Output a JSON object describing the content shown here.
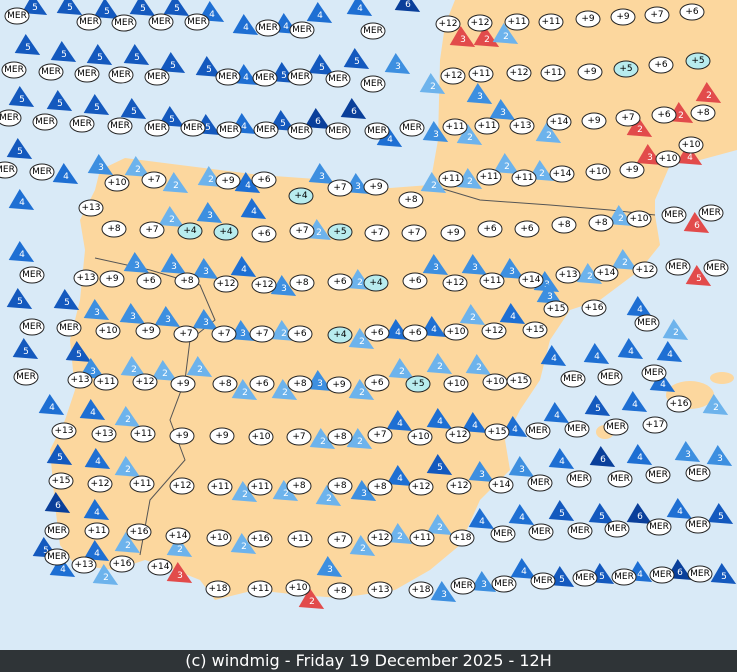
{
  "footer": "(c) windmig - Friday 19 December 2025 - 12H",
  "sea_color": "#d9eaf7",
  "land_color": "#fcd79e",
  "cold_fill": "#b8ecee",
  "gust_color": "#e24b4b",
  "wind_colors": {
    "2": "#6db3ec",
    "3": "#3d8fe0",
    "4": "#1e6fd3",
    "5": "#1459be",
    "6": "#0a3f9a"
  },
  "markers": [
    [
      "MER",
      "MER",
      "MER",
      "MER",
      "MER",
      "MER",
      "MER",
      "MER",
      "+12",
      "+12",
      "+11",
      "+11",
      "+9",
      "+9",
      "+7",
      "+6"
    ],
    [
      "MER",
      "MER",
      "MER",
      "MER",
      "MER",
      "MER",
      "MER",
      "MER",
      "MER",
      "MER",
      "+12",
      "+11",
      "+12",
      "+11",
      "+9",
      "+5",
      "+6",
      "+5"
    ],
    [
      "MER",
      "MER",
      "MER",
      "MER",
      "MER",
      "MER",
      "MER",
      "MER",
      "MER",
      "MER",
      "MER",
      "MER",
      "+11",
      "+11",
      "+13",
      "+14",
      "+9",
      "+7",
      "+6",
      "+8"
    ],
    [
      "MER",
      "MER",
      "+10",
      "+7",
      "+9",
      "+6",
      "+7",
      "+9",
      "+11",
      "+11",
      "+11",
      "+14",
      "+10",
      "+9",
      "+10",
      "+10",
      "+4",
      "+8",
      "+13"
    ],
    [
      "+8",
      "+7",
      "+4",
      "+4",
      "+6",
      "+7",
      "+5",
      "+7",
      "+7",
      "+9",
      "+6",
      "+6",
      "+8",
      "+8",
      "+10",
      "MER",
      "MER"
    ],
    [
      "MER",
      "+13",
      "+9",
      "+6",
      "+8",
      "+12",
      "+12",
      "+8",
      "+6",
      "+4",
      "+6",
      "+12",
      "+11",
      "+14",
      "+13",
      "+14",
      "+12",
      "MER",
      "MER",
      "+15",
      "+16"
    ],
    [
      "MER",
      "MER",
      "+10",
      "+9",
      "+7",
      "+7",
      "+7",
      "+6",
      "+4",
      "+6",
      "+6",
      "+10",
      "+12",
      "+15",
      "MER"
    ],
    [
      "MER",
      "+13",
      "+11",
      "+12",
      "+9",
      "+8",
      "+6",
      "+8",
      "+9",
      "+6",
      "+5",
      "+10",
      "+10",
      "+15",
      "MER",
      "MER",
      "MER",
      "+16"
    ],
    [
      "+13",
      "+13",
      "+11",
      "+9",
      "+9",
      "+10",
      "+7",
      "+8",
      "+7",
      "+10",
      "+12",
      "+15",
      "MER",
      "MER",
      "MER",
      "+17"
    ],
    [
      "+15",
      "+12",
      "+11",
      "+12",
      "+11",
      "+11",
      "+8",
      "+8",
      "+8",
      "+12",
      "+12",
      "+14",
      "MER",
      "MER",
      "MER",
      "MER",
      "MER"
    ],
    [
      "MER",
      "+11",
      "+16",
      "+14",
      "+10",
      "+16",
      "+11",
      "+7",
      "+12",
      "+11",
      "+18",
      "MER",
      "MER",
      "MER",
      "MER",
      "MER",
      "MER"
    ],
    [
      "MER",
      "+13",
      "+16",
      "+14",
      "+18",
      "+11",
      "+10",
      "+8",
      "+13",
      "+18",
      "MER",
      "MER",
      "MER",
      "MER",
      "MER",
      "MER",
      "MER"
    ]
  ],
  "winds": [
    [
      5,
      5,
      5,
      5,
      5,
      4,
      4,
      4,
      4,
      4,
      6
    ],
    [
      5,
      5,
      5,
      5,
      5,
      5,
      4,
      5,
      5,
      5,
      3,
      2,
      3,
      3,
      2,
      2
    ],
    [
      5,
      5,
      5,
      5,
      5,
      5,
      4,
      5,
      6,
      6,
      4,
      3,
      2,
      3,
      2,
      2,
      2,
      2
    ],
    [
      5,
      4,
      3,
      2,
      2,
      2,
      4,
      3,
      3,
      2,
      2,
      2,
      2,
      3,
      4
    ],
    [
      4,
      2,
      3,
      4,
      2,
      2,
      6
    ],
    [
      4,
      3,
      3,
      3,
      4,
      3,
      2,
      3,
      3,
      3,
      3,
      2,
      2,
      5
    ],
    [
      5,
      5,
      3,
      3,
      3,
      3,
      3,
      2,
      2,
      4,
      4,
      2,
      4,
      3,
      4,
      2
    ],
    [
      5,
      5,
      3,
      2,
      2,
      2,
      2,
      2,
      3,
      2,
      2,
      2,
      2,
      4,
      4,
      4,
      4,
      4
    ],
    [
      4,
      4,
      2,
      2,
      2,
      4,
      4,
      4,
      4,
      4,
      5,
      4,
      2
    ],
    [
      5,
      4,
      2,
      2,
      2,
      2,
      3,
      4,
      5,
      3,
      3,
      4,
      6,
      4,
      3,
      3
    ],
    [
      6,
      4,
      2,
      2,
      2,
      2,
      2,
      2,
      4,
      4,
      5,
      5,
      6,
      4,
      5
    ],
    [
      5,
      4,
      4,
      2,
      3,
      2,
      3,
      3,
      3,
      4,
      5,
      5,
      4,
      6,
      5
    ]
  ]
}
